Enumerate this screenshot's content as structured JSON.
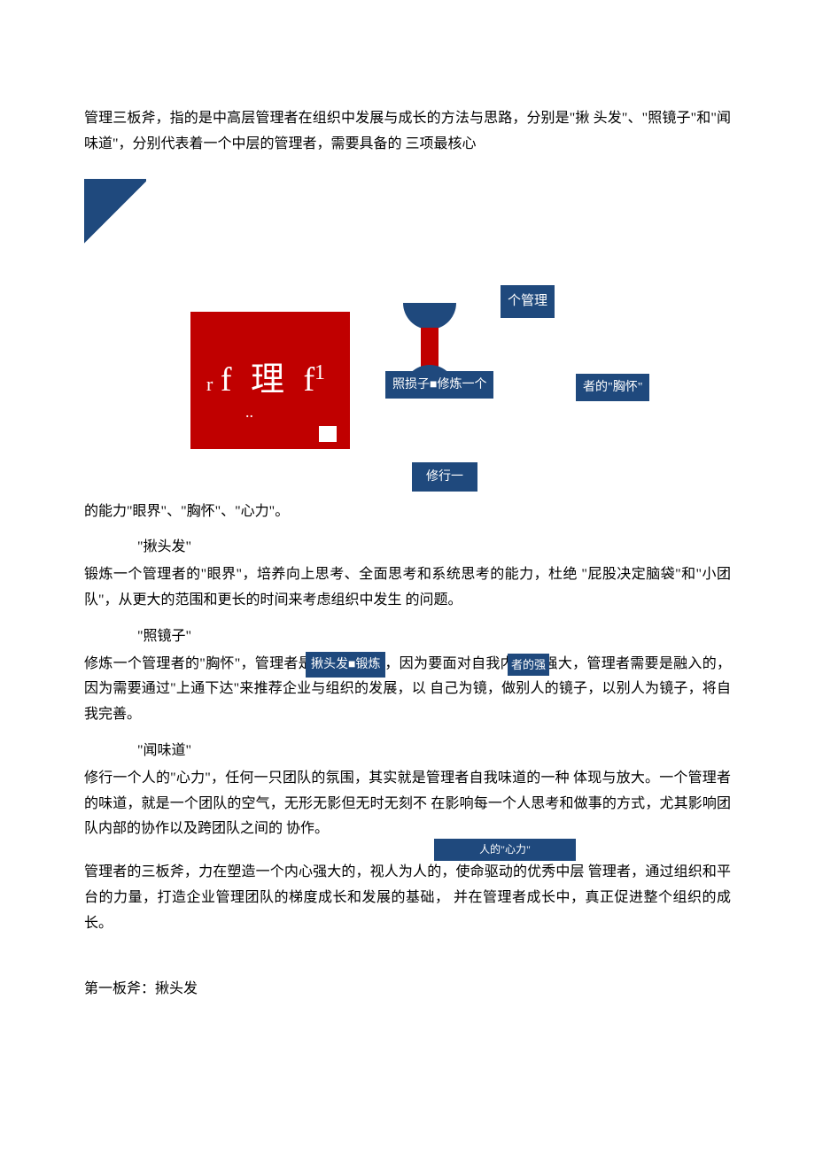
{
  "intro": {
    "p1": "管理三板斧，指的是中高层管理者在组织中发展与成长的方法与思路，分别是\"揪 头发\"、\"照镜子\"和\"闻味道\"，分别代表着一个中层的管理者，需要具备的 三项最核心"
  },
  "diagram": {
    "red_box_text": "f 理 f",
    "red_box_r": "r",
    "red_box_1": "1",
    "red_box_dots": "..",
    "label_manage": "个管理",
    "label_mirror": "照损子■修炼一个",
    "label_chest": "者的\"胸怀\"",
    "label_practice": "修行一",
    "label_hair": "揪头发■锻炼",
    "label_strong": "者的强",
    "label_heart": "人的\"心力\""
  },
  "after": {
    "p1": "的能力\"眼界\"、\"胸怀\"、\"心力\"。"
  },
  "section1": {
    "title": "\"揪头发\"",
    "body": "锻炼一个管理者的\"眼界\"，培养向上思考、全面思考和系统思考的能力，杜绝 \"屁股决定脑袋\"和\"小团队\"，从更大的范围和更长的时间来考虑组织中发生 的问题。"
  },
  "section2": {
    "title": "\"照镜子\"",
    "body_a": "修炼一个管理者的\"胸怀\"，管理者是需要孤独的，因为要面对自我内心的强大，管理者需要是融入的，因为需要通过\"上通下达\"来推荐企业与组织的发展，以 自己为镜，做别人的镜子，以别人为镜子，将自我完善。"
  },
  "section3": {
    "title": "\"闻味道\"",
    "body_a": "修行一个人的\"心力\"，任何一只团队的氛围，其实就是管理者自我味道的一种 体现与放大。一个管理者的味道，就是一个团队的空气，无形无影但无时无刻不 在影响每一个人思考和做事的方式，尤其影响团队内部的协作以及跨团队之间的 协作。"
  },
  "conclusion": {
    "body": "管理者的三板斧，力在塑造一个内心强大的，视人为人的，使命驱动的优秀中层 管理者，通过组织和平台的力量，打造企业管理团队的梯度成长和发展的基础，  并在管理者成长中，真正促进整个组织的成长。"
  },
  "final": {
    "title": "第一板斧：揪头发"
  },
  "colors": {
    "blue": "#1f497d",
    "red": "#c00000",
    "white": "#ffffff",
    "text": "#000000"
  }
}
